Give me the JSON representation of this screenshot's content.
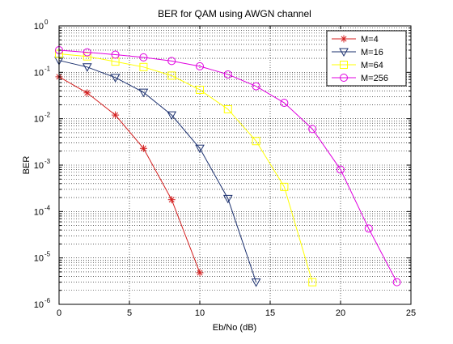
{
  "chart_data": {
    "type": "line",
    "title": "BER for QAM using AWGN channel",
    "xlabel": "Eb/No (dB)",
    "ylabel": "BER",
    "xlim": [
      0,
      25
    ],
    "ylim": [
      1e-06,
      1
    ],
    "yscale": "log",
    "x_ticks": [
      0,
      5,
      10,
      15,
      20,
      25
    ],
    "y_tick_exponents": [
      0,
      -1,
      -2,
      -3,
      -4,
      -5,
      -6
    ],
    "y_tick_base": "10",
    "grid": "dotted",
    "legend_position": "top-right",
    "series": [
      {
        "name": "M=4",
        "color": "#d42020",
        "marker": "asterisk",
        "x": [
          0,
          2,
          4,
          6,
          8,
          10
        ],
        "y": [
          0.08,
          0.036,
          0.012,
          0.0023,
          0.00018,
          4.8e-06
        ]
      },
      {
        "name": "M=16",
        "color": "#1a2f6e",
        "marker": "triangle-down",
        "x": [
          0,
          2,
          4,
          6,
          8,
          10,
          12,
          14
        ],
        "y": [
          0.18,
          0.13,
          0.077,
          0.037,
          0.012,
          0.0023,
          0.00019,
          3e-06
        ]
      },
      {
        "name": "M=64",
        "color": "#ffff00",
        "marker": "square",
        "x": [
          0,
          2,
          4,
          6,
          8,
          10,
          12,
          14,
          16,
          18
        ],
        "y": [
          0.25,
          0.22,
          0.17,
          0.13,
          0.085,
          0.042,
          0.016,
          0.0033,
          0.00034,
          3e-06
        ]
      },
      {
        "name": "M=256",
        "color": "#e000e0",
        "marker": "circle",
        "x": [
          0,
          2,
          4,
          6,
          8,
          10,
          12,
          14,
          16,
          18,
          20,
          22,
          24
        ],
        "y": [
          0.3,
          0.27,
          0.24,
          0.21,
          0.175,
          0.135,
          0.09,
          0.05,
          0.022,
          0.006,
          0.0008,
          4.3e-05,
          3e-06
        ]
      }
    ]
  }
}
